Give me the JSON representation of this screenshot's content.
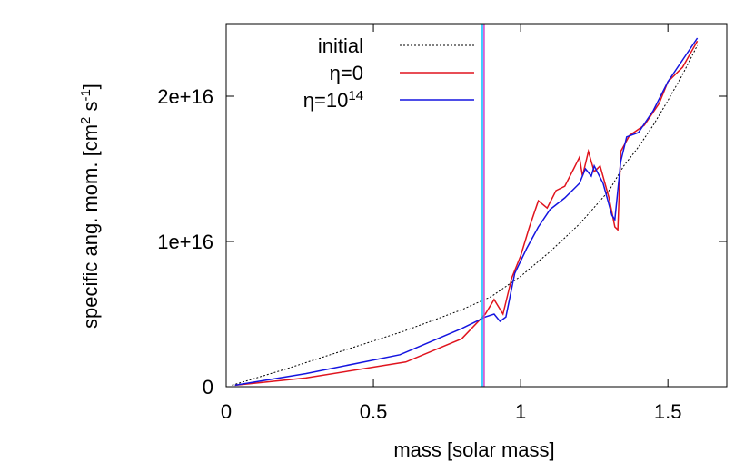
{
  "chart_data": {
    "type": "line",
    "xlabel": "mass [solar mass]",
    "ylabel_parts": [
      "specific ang. mom. [cm",
      "2",
      " s",
      "-1",
      "]"
    ],
    "xlim": [
      0,
      1.7
    ],
    "ylim": [
      0,
      2.5e+16
    ],
    "xticks": [
      0,
      0.5,
      1,
      1.5
    ],
    "yticks": [
      0,
      {
        "value": 1e+16,
        "label": "1e+16"
      },
      {
        "value": 2e+16,
        "label": "2e+16"
      }
    ],
    "legend": "top-left",
    "vlines": [
      {
        "x": 0.87,
        "color": "#00bfff"
      },
      {
        "x": 0.876,
        "color": "#cc44cc"
      }
    ],
    "series": [
      {
        "name": "initial",
        "color": "#000000",
        "dash": true,
        "x": [
          0.02,
          0.2,
          0.4,
          0.6,
          0.8,
          0.9,
          1.0,
          1.1,
          1.2,
          1.3,
          1.35,
          1.4,
          1.45,
          1.5,
          1.55,
          1.6
        ],
        "values": [
          100000000000000.0,
          1200000000000000.0,
          2500000000000000.0,
          3800000000000000.0,
          5300000000000000.0,
          6200000000000000.0,
          7600000000000000.0,
          9300000000000000.0,
          1.12e+16,
          1.35e+16,
          1.52e+16,
          1.65e+16,
          1.8e+16,
          1.97e+16,
          2.15e+16,
          2.35e+16
        ]
      },
      {
        "name": "η=0",
        "color": "#e0141e",
        "x": [
          0.03,
          0.27,
          0.61,
          0.8,
          0.88,
          0.91,
          0.94,
          0.97,
          1.0,
          1.03,
          1.06,
          1.09,
          1.12,
          1.15,
          1.18,
          1.2,
          1.21,
          1.23,
          1.25,
          1.27,
          1.3,
          1.32,
          1.33,
          1.34,
          1.37,
          1.42,
          1.47,
          1.5,
          1.55,
          1.6
        ],
        "values": [
          100000000000000.0,
          600000000000000.0,
          1700000000000000.0,
          3300000000000000.0,
          5000000000000000.0,
          6000000000000000.0,
          5000000000000000.0,
          7500000000000000.0,
          9000000000000000.0,
          1.1e+16,
          1.28e+16,
          1.23e+16,
          1.35e+16,
          1.38e+16,
          1.5e+16,
          1.58e+16,
          1.45e+16,
          1.62e+16,
          1.48e+16,
          1.52e+16,
          1.3e+16,
          1.1e+16,
          1.08e+16,
          1.62e+16,
          1.73e+16,
          1.8e+16,
          1.95e+16,
          2.1e+16,
          2.2e+16,
          2.38e+16
        ]
      },
      {
        "name": "η=10",
        "name_superscript": "14",
        "color": "#1414e0",
        "x": [
          0.03,
          0.27,
          0.59,
          0.8,
          0.88,
          0.91,
          0.93,
          0.95,
          0.98,
          1.02,
          1.06,
          1.1,
          1.15,
          1.2,
          1.22,
          1.24,
          1.25,
          1.28,
          1.31,
          1.32,
          1.34,
          1.36,
          1.4,
          1.45,
          1.5,
          1.55,
          1.6
        ],
        "values": [
          100000000000000.0,
          900000000000000.0,
          2200000000000000.0,
          4000000000000000.0,
          4800000000000000.0,
          5000000000000000.0,
          4500000000000000.0,
          4800000000000000.0,
          7800000000000000.0,
          9500000000000000.0,
          1.1e+16,
          1.22e+16,
          1.3e+16,
          1.4e+16,
          1.5e+16,
          1.45e+16,
          1.52e+16,
          1.4e+16,
          1.18e+16,
          1.15e+16,
          1.55e+16,
          1.72e+16,
          1.75e+16,
          1.9e+16,
          2.1e+16,
          2.25e+16,
          2.4e+16
        ]
      }
    ]
  }
}
